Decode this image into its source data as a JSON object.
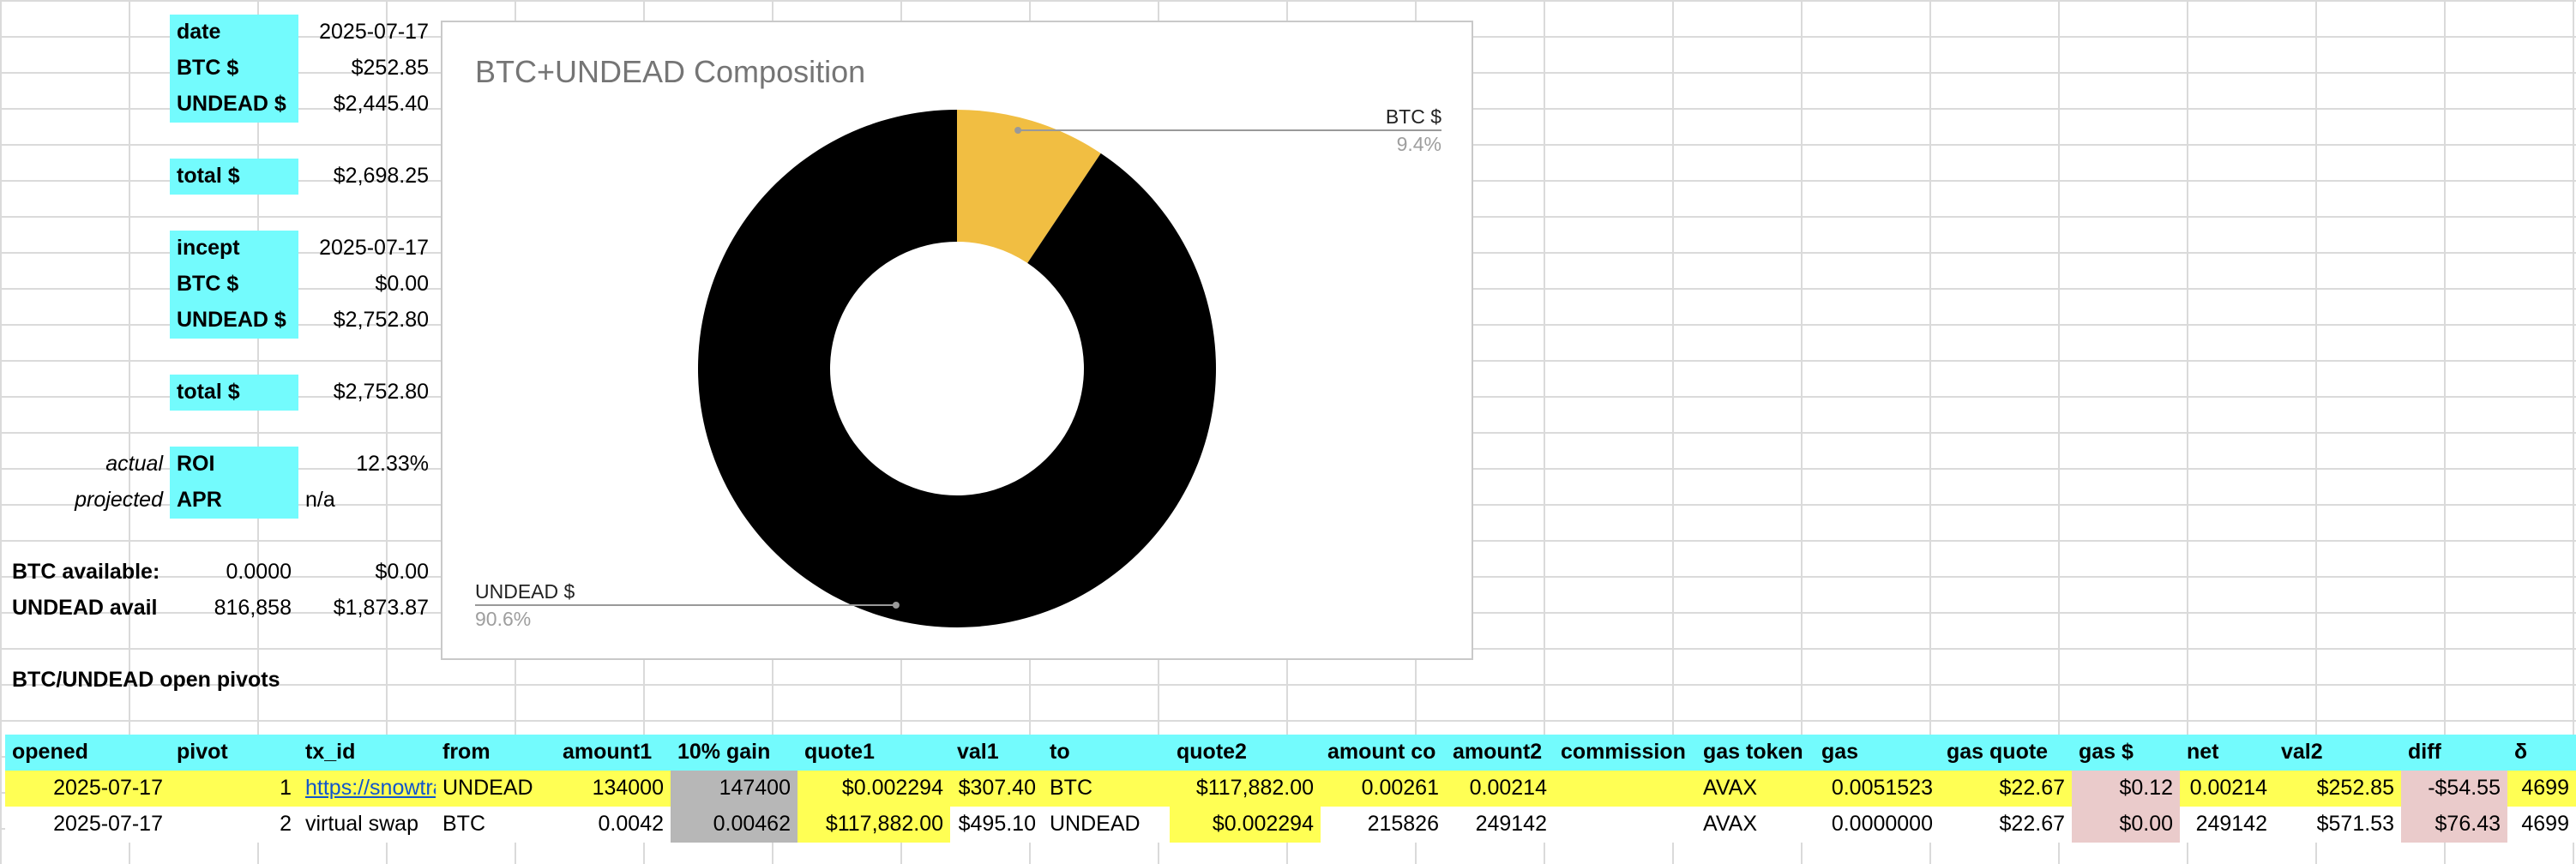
{
  "summary": {
    "date_label": "date",
    "date_value": "2025-07-17",
    "btc_label": "BTC $",
    "btc_value": "$252.85",
    "undead_label": "UNDEAD $",
    "undead_value": "$2,445.40",
    "total_label": "total $",
    "total_value": "$2,698.25",
    "incept_label": "incept",
    "incept_value": "2025-07-17",
    "btc2_label": "BTC $",
    "btc2_value": "$0.00",
    "undead2_label": "UNDEAD $",
    "undead2_value": "$2,752.80",
    "total2_label": "total $",
    "total2_value": "$2,752.80",
    "actual_label": "actual",
    "roi_label": "ROI",
    "roi_value": "12.33%",
    "projected_label": "projected",
    "apr_label": "APR",
    "apr_value": "n/a",
    "btc_avail_label": "BTC available:",
    "btc_avail_amount": "0.0000",
    "btc_avail_usd": "$0.00",
    "undead_avail_label": "UNDEAD avail",
    "undead_avail_amount": "816,858",
    "undead_avail_usd": "$1,873.87",
    "pivots_title": "BTC/UNDEAD open pivots"
  },
  "table": {
    "headers": [
      "opened",
      "pivot",
      "tx_id",
      "from",
      "amount1",
      "10% gain",
      "quote1",
      "val1",
      "to",
      "quote2",
      "amount co",
      "amount2",
      "commission",
      "gas token",
      "gas",
      "gas quote",
      "gas $",
      "net",
      "val2",
      "diff",
      "δ"
    ],
    "rows": [
      [
        "2025-07-17",
        "1",
        "https://snowtrace.io",
        "UNDEAD",
        "134000",
        "147400",
        "$0.002294",
        "$307.40",
        "BTC",
        "$117,882.00",
        "0.00261",
        "0.00214",
        "",
        "AVAX",
        "0.0051523",
        "$22.67",
        "$0.12",
        "0.00214",
        "$252.85",
        "-$54.55",
        "4699"
      ],
      [
        "2025-07-17",
        "2",
        "virtual swap",
        "BTC",
        "0.0042",
        "0.00462",
        "$117,882.00",
        "$495.10",
        "UNDEAD",
        "$0.002294",
        "215826",
        "249142",
        "",
        "AVAX",
        "0.0000000",
        "$22.67",
        "$0.00",
        "249142",
        "$571.53",
        "$76.43",
        "4699"
      ]
    ]
  },
  "chart_data": {
    "type": "pie",
    "title": "BTC+UNDEAD Composition",
    "donut": true,
    "slices": [
      {
        "label": "BTC $",
        "value": 252.85,
        "percent": "9.4%",
        "color": "#F1BE42"
      },
      {
        "label": "UNDEAD $",
        "value": 2445.4,
        "percent": "90.6%",
        "color": "#000000"
      }
    ]
  },
  "colors": {
    "header_cyan": "#73FBFD",
    "highlight_yellow": "#FFFF54",
    "grey_fill": "#B7B7B7",
    "pink_fill": "#EACBCB"
  }
}
